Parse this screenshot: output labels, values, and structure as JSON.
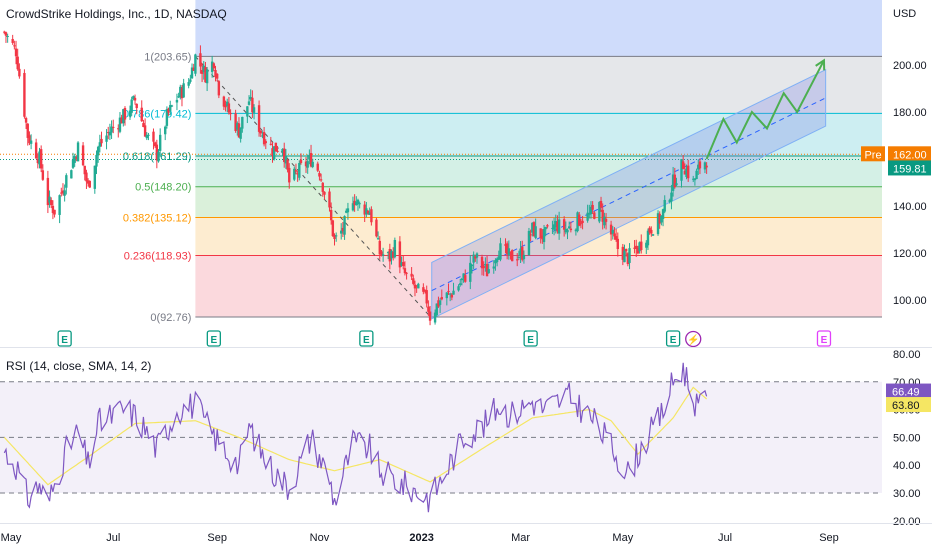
{
  "header": {
    "title": "CrowdStrike Holdings, Inc., 1D, NASDAQ",
    "currency": "USD"
  },
  "rsi_title": "RSI (14, close, SMA, 14, 2)",
  "price_tags": {
    "pre_label": "Pre",
    "pre_value": "162.00",
    "last_value": "159.81",
    "rsi_value": "66.49",
    "rsi_ma_value": "63.80"
  },
  "colors": {
    "up": "#22ab94",
    "down": "#f23645",
    "rsi": "#7e57c2",
    "rsi_ma": "#f5e663",
    "channel": "#5b9cf6",
    "projection": "#4caf50",
    "pre_tag": "#f57c00"
  },
  "earnings_markers": [
    {
      "x": "2022-06-02",
      "label": "E"
    },
    {
      "x": "2022-08-30",
      "label": "E"
    },
    {
      "x": "2022-11-29",
      "label": "E"
    },
    {
      "x": "2023-03-07",
      "label": "E"
    },
    {
      "x": "2023-05-31",
      "label": "E"
    },
    {
      "x": "2023-06-12",
      "label": "⚡"
    },
    {
      "x": "2023-08-29",
      "label": "E"
    }
  ],
  "chart_data": [
    {
      "type": "candlestick",
      "title": "CrowdStrike Holdings, Inc., 1D, NASDAQ",
      "x_ticks": [
        "May",
        "Jul",
        "Sep",
        "Nov",
        "2023",
        "Mar",
        "May",
        "Jul",
        "Sep"
      ],
      "x_tick_dates": [
        "2022-05-01",
        "2022-07-01",
        "2022-09-01",
        "2022-11-01",
        "2023-01-01",
        "2023-03-01",
        "2023-05-01",
        "2023-07-01",
        "2023-09-01"
      ],
      "xlim": [
        "2022-04-26",
        "2023-09-24"
      ],
      "y_ticks": [
        "100.00",
        "120.00",
        "140.00",
        "160.00",
        "180.00",
        "200.00"
      ],
      "ylim": [
        90,
        220
      ],
      "grid": false,
      "fibonacci": [
        {
          "ratio": "1",
          "label": "1(203.65)",
          "price": 203.65,
          "color": "#787b86"
        },
        {
          "ratio": "0.786",
          "label": "0.786(179.42)",
          "price": 179.42,
          "color": "#00bcd4"
        },
        {
          "ratio": "0.618",
          "label": "0.618(161.29)",
          "price": 161.29,
          "color": "#089981"
        },
        {
          "ratio": "0.5",
          "label": "0.5(148.20)",
          "price": 148.2,
          "color": "#4caf50"
        },
        {
          "ratio": "0.382",
          "label": "0.382(135.12)",
          "price": 135.12,
          "color": "#ff9800"
        },
        {
          "ratio": "0.236",
          "label": "0.236(118.93)",
          "price": 118.93,
          "color": "#f23645"
        },
        {
          "ratio": "0",
          "label": "0(92.76)",
          "price": 92.76,
          "color": "#787b86"
        }
      ],
      "candle_path": [
        [
          "2022-04-27",
          214
        ],
        [
          "2022-05-04",
          206
        ],
        [
          "2022-05-11",
          170
        ],
        [
          "2022-05-18",
          160
        ],
        [
          "2022-05-23",
          142
        ],
        [
          "2022-05-27",
          138
        ],
        [
          "2022-06-03",
          152
        ],
        [
          "2022-06-10",
          165
        ],
        [
          "2022-06-16",
          148
        ],
        [
          "2022-06-22",
          165
        ],
        [
          "2022-06-29",
          172
        ],
        [
          "2022-07-07",
          178
        ],
        [
          "2022-07-14",
          185
        ],
        [
          "2022-07-21",
          170
        ],
        [
          "2022-07-27",
          162
        ],
        [
          "2022-08-02",
          178
        ],
        [
          "2022-08-08",
          186
        ],
        [
          "2022-08-15",
          193
        ],
        [
          "2022-08-19",
          203.65
        ],
        [
          "2022-08-25",
          196
        ],
        [
          "2022-08-30",
          202
        ],
        [
          "2022-09-02",
          190
        ],
        [
          "2022-09-08",
          180
        ],
        [
          "2022-09-14",
          172
        ],
        [
          "2022-09-20",
          185
        ],
        [
          "2022-09-27",
          172
        ],
        [
          "2022-10-04",
          164
        ],
        [
          "2022-10-10",
          166
        ],
        [
          "2022-10-14",
          150
        ],
        [
          "2022-10-21",
          156
        ],
        [
          "2022-10-27",
          160
        ],
        [
          "2022-11-01",
          155
        ],
        [
          "2022-11-07",
          137
        ],
        [
          "2022-11-10",
          125
        ],
        [
          "2022-11-15",
          130
        ],
        [
          "2022-11-21",
          144
        ],
        [
          "2022-11-25",
          140
        ],
        [
          "2022-12-01",
          138
        ],
        [
          "2022-12-07",
          120
        ],
        [
          "2022-12-13",
          118
        ],
        [
          "2022-12-16",
          123
        ],
        [
          "2022-12-21",
          112
        ],
        [
          "2022-12-28",
          105
        ],
        [
          "2023-01-04",
          100
        ],
        [
          "2023-01-06",
          93
        ],
        [
          "2023-01-12",
          100
        ],
        [
          "2023-01-19",
          103
        ],
        [
          "2023-01-26",
          109
        ],
        [
          "2023-02-02",
          118
        ],
        [
          "2023-02-09",
          112
        ],
        [
          "2023-02-16",
          122
        ],
        [
          "2023-02-23",
          118
        ],
        [
          "2023-03-02",
          120
        ],
        [
          "2023-03-08",
          130
        ],
        [
          "2023-03-15",
          127
        ],
        [
          "2023-03-22",
          132
        ],
        [
          "2023-03-29",
          130
        ],
        [
          "2023-04-04",
          134
        ],
        [
          "2023-04-11",
          136
        ],
        [
          "2023-04-17",
          139
        ],
        [
          "2023-04-24",
          128
        ],
        [
          "2023-04-28",
          122
        ],
        [
          "2023-05-04",
          118
        ],
        [
          "2023-05-10",
          122
        ],
        [
          "2023-05-17",
          130
        ],
        [
          "2023-05-24",
          135
        ],
        [
          "2023-05-31",
          150
        ],
        [
          "2023-06-06",
          158
        ],
        [
          "2023-06-12",
          150
        ],
        [
          "2023-06-16",
          157
        ],
        [
          "2023-06-20",
          159.81
        ]
      ],
      "channel": {
        "lower_start": [
          "2023-01-07",
          92
        ],
        "lower_end": [
          "2023-08-30",
          174
        ],
        "upper_start": [
          "2023-01-07",
          116
        ],
        "upper_end": [
          "2023-08-30",
          198
        ],
        "mid_start": [
          "2023-01-07",
          104
        ],
        "mid_end": [
          "2023-08-30",
          186
        ]
      },
      "decline_trend": [
        [
          "2022-08-19",
          203.65
        ],
        [
          "2023-01-06",
          93
        ]
      ],
      "projection": [
        [
          "2023-06-20",
          160
        ],
        [
          "2023-06-30",
          177
        ],
        [
          "2023-07-08",
          167
        ],
        [
          "2023-07-17",
          180
        ],
        [
          "2023-07-26",
          173
        ],
        [
          "2023-08-05",
          188
        ],
        [
          "2023-08-13",
          180
        ],
        [
          "2023-08-29",
          202
        ]
      ]
    },
    {
      "type": "line",
      "title": "RSI (14, close, SMA, 14, 2)",
      "y_ticks": [
        "20.00",
        "30.00",
        "40.00",
        "50.00",
        "60.00",
        "70.00",
        "80.00"
      ],
      "ylim": [
        18,
        82
      ],
      "bands": [
        70,
        50,
        30
      ],
      "series": [
        {
          "name": "RSI",
          "path": [
            [
              "2022-04-27",
              45
            ],
            [
              "2022-05-04",
              40
            ],
            [
              "2022-05-11",
              28
            ],
            [
              "2022-05-18",
              33
            ],
            [
              "2022-05-23",
              26
            ],
            [
              "2022-06-03",
              45
            ],
            [
              "2022-06-10",
              52
            ],
            [
              "2022-06-16",
              40
            ],
            [
              "2022-06-22",
              55
            ],
            [
              "2022-07-07",
              60
            ],
            [
              "2022-07-14",
              58
            ],
            [
              "2022-07-21",
              52
            ],
            [
              "2022-07-27",
              46
            ],
            [
              "2022-08-08",
              60
            ],
            [
              "2022-08-19",
              62
            ],
            [
              "2022-08-25",
              55
            ],
            [
              "2022-09-02",
              48
            ],
            [
              "2022-09-14",
              40
            ],
            [
              "2022-09-20",
              54
            ],
            [
              "2022-09-27",
              45
            ],
            [
              "2022-10-04",
              38
            ],
            [
              "2022-10-14",
              32
            ],
            [
              "2022-10-27",
              50
            ],
            [
              "2022-11-07",
              35
            ],
            [
              "2022-11-10",
              27
            ],
            [
              "2022-11-21",
              48
            ],
            [
              "2022-12-01",
              46
            ],
            [
              "2022-12-07",
              38
            ],
            [
              "2022-12-21",
              33
            ],
            [
              "2023-01-06",
              28
            ],
            [
              "2023-01-12",
              34
            ],
            [
              "2023-01-26",
              50
            ],
            [
              "2023-02-09",
              55
            ],
            [
              "2023-02-16",
              62
            ],
            [
              "2023-02-23",
              58
            ],
            [
              "2023-03-08",
              63
            ],
            [
              "2023-03-15",
              60
            ],
            [
              "2023-03-29",
              65
            ],
            [
              "2023-04-11",
              58
            ],
            [
              "2023-04-24",
              47
            ],
            [
              "2023-05-04",
              37
            ],
            [
              "2023-05-10",
              44
            ],
            [
              "2023-05-24",
              58
            ],
            [
              "2023-05-31",
              70
            ],
            [
              "2023-06-06",
              75
            ],
            [
              "2023-06-12",
              64
            ],
            [
              "2023-06-16",
              60
            ],
            [
              "2023-06-20",
              66.49
            ]
          ]
        },
        {
          "name": "RSI-based MA",
          "path": [
            [
              "2022-04-27",
              50
            ],
            [
              "2022-05-23",
              33
            ],
            [
              "2022-06-16",
              43
            ],
            [
              "2022-07-14",
              55
            ],
            [
              "2022-08-19",
              56
            ],
            [
              "2022-09-14",
              50
            ],
            [
              "2022-10-14",
              42
            ],
            [
              "2022-11-10",
              38
            ],
            [
              "2022-12-07",
              42
            ],
            [
              "2023-01-06",
              34
            ],
            [
              "2023-02-09",
              47
            ],
            [
              "2023-03-08",
              57
            ],
            [
              "2023-04-11",
              60
            ],
            [
              "2023-04-24",
              56
            ],
            [
              "2023-05-10",
              44
            ],
            [
              "2023-05-31",
              57
            ],
            [
              "2023-06-12",
              68
            ],
            [
              "2023-06-20",
              63.8
            ]
          ]
        }
      ]
    }
  ]
}
